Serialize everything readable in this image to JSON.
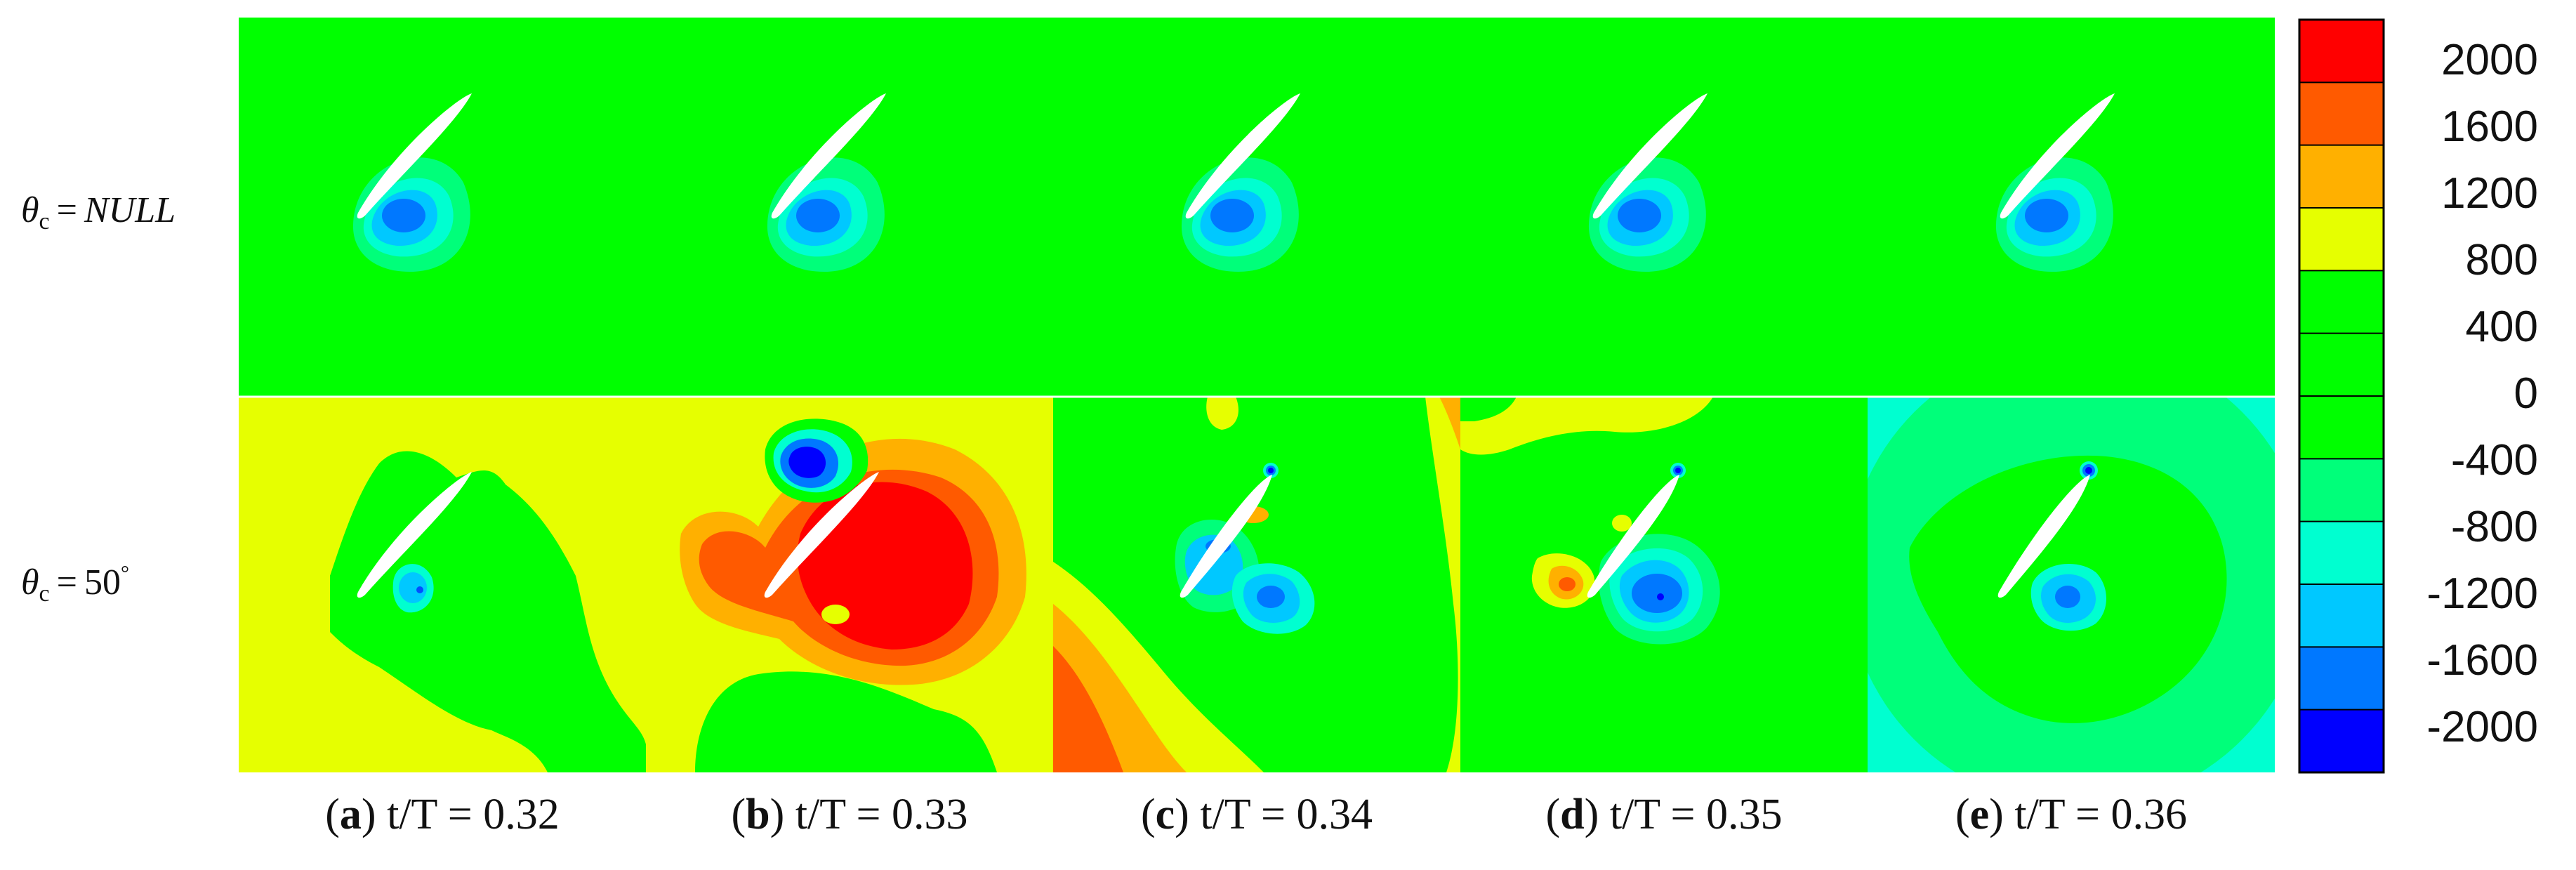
{
  "figure": {
    "row_labels": [
      {
        "symbol": "θ",
        "subscript": "c",
        "equals": "=",
        "value": "NULL",
        "degree": ""
      },
      {
        "symbol": "θ",
        "subscript": "c",
        "equals": "=",
        "value": "50",
        "degree": "°"
      }
    ],
    "captions": [
      {
        "letter": "a",
        "text": "t/T = 0.32"
      },
      {
        "letter": "b",
        "text": "t/T = 0.33"
      },
      {
        "letter": "c",
        "text": "t/T = 0.34"
      },
      {
        "letter": "d",
        "text": "t/T = 0.35"
      },
      {
        "letter": "e",
        "text": "t/T = 0.36"
      }
    ],
    "colorbar": {
      "labels": [
        "2000",
        "1600",
        "1200",
        "800",
        "400",
        "0",
        "-400",
        "-800",
        "-1200",
        "-1600",
        "-2000"
      ],
      "colors_top_to_bottom": [
        "#ff0000",
        "#ff5a00",
        "#ffb000",
        "#e6ff00",
        "#00ff00",
        "#00ff00",
        "#00ff00",
        "#00ff7a",
        "#00ffd0",
        "#00c8ff",
        "#0078ff",
        "#0000ff"
      ]
    },
    "colors": {
      "neutral_field": "#00ff00",
      "airfoil": "#ffffff",
      "low_pressure": "#0050ff",
      "high_pressure": "#ff0000"
    }
  }
}
